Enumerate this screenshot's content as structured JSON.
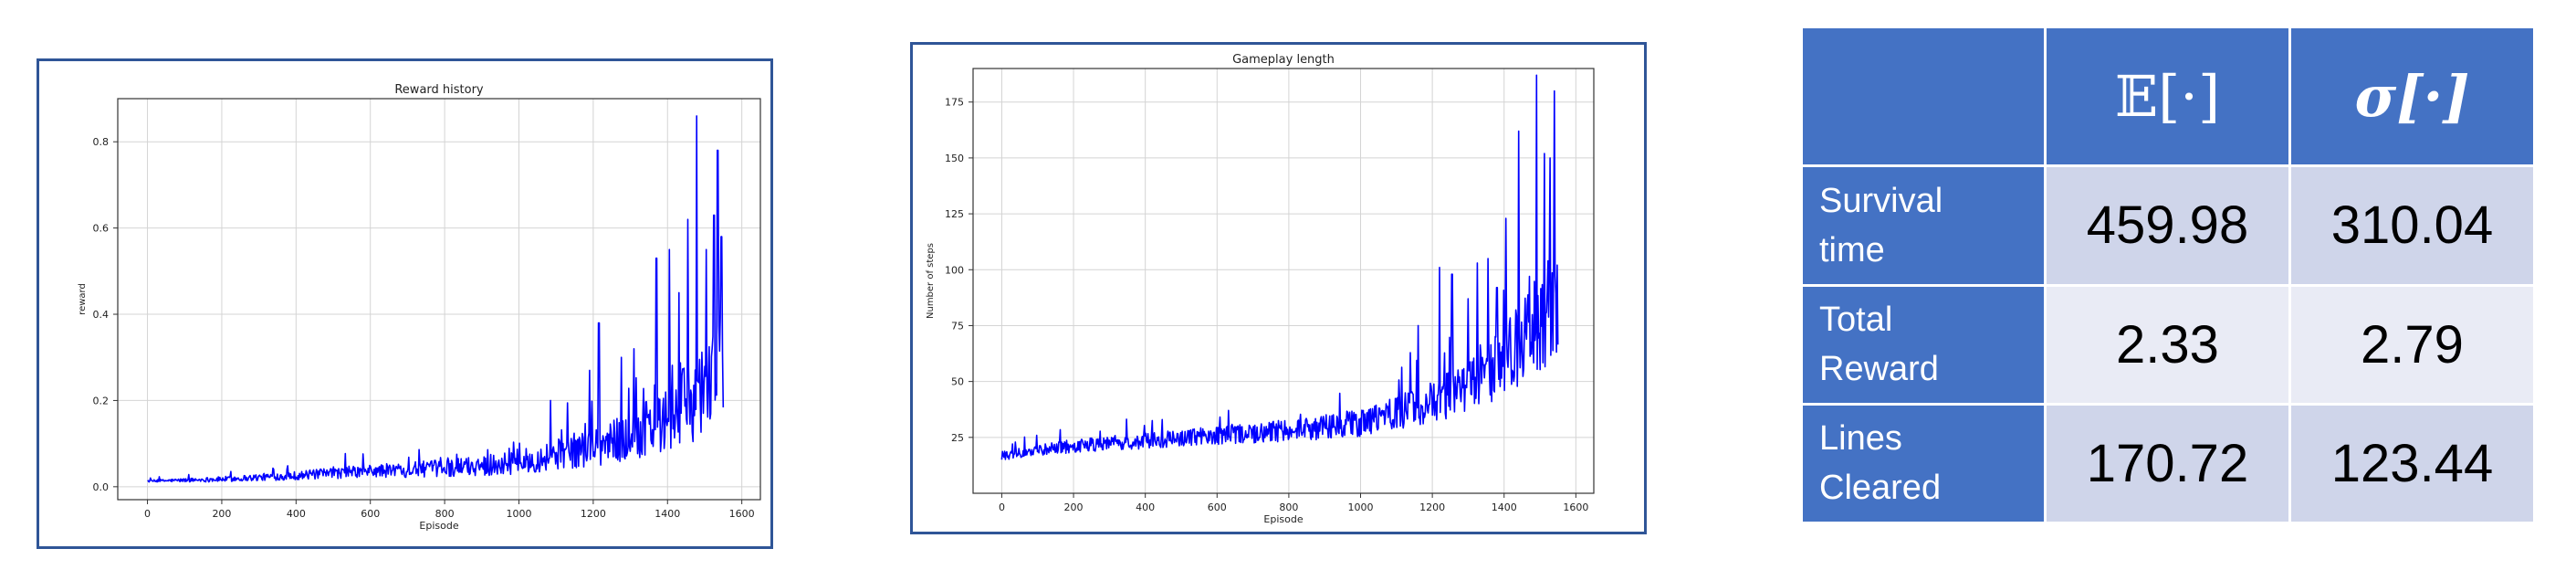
{
  "chart_data": [
    {
      "type": "line",
      "title": "Reward history",
      "xlabel": "Episode",
      "ylabel": "reward",
      "xlim": [
        -80,
        1650
      ],
      "ylim": [
        -0.03,
        0.9
      ],
      "xticks": [
        0,
        200,
        400,
        600,
        800,
        1000,
        1200,
        1400,
        1600
      ],
      "yticks": [
        0.0,
        0.2,
        0.4,
        0.6,
        0.8
      ],
      "ytick_labels": [
        "0.0",
        "0.2",
        "0.4",
        "0.6",
        "0.8"
      ],
      "grid": true,
      "color": "#0000ff",
      "series": [
        {
          "x_start": 0,
          "x_end": 1550,
          "baseline": [
            [
              0,
              0.012
            ],
            [
              200,
              0.015
            ],
            [
              400,
              0.022
            ],
            [
              600,
              0.03
            ],
            [
              800,
              0.035
            ],
            [
              1000,
              0.045
            ],
            [
              1100,
              0.06
            ],
            [
              1200,
              0.075
            ],
            [
              1300,
              0.09
            ],
            [
              1400,
              0.12
            ],
            [
              1450,
              0.15
            ],
            [
              1500,
              0.19
            ],
            [
              1550,
              0.24
            ]
          ],
          "amplitude": [
            [
              0,
              0.005
            ],
            [
              200,
              0.012
            ],
            [
              400,
              0.02
            ],
            [
              600,
              0.03
            ],
            [
              800,
              0.04
            ],
            [
              1000,
              0.055
            ],
            [
              1200,
              0.09
            ],
            [
              1300,
              0.12
            ],
            [
              1400,
              0.16
            ],
            [
              1500,
              0.22
            ],
            [
              1550,
              0.26
            ]
          ],
          "peaks": [
            [
              1085,
              0.2
            ],
            [
              1190,
              0.27
            ],
            [
              1215,
              0.38
            ],
            [
              1275,
              0.3
            ],
            [
              1310,
              0.32
            ],
            [
              1370,
              0.53
            ],
            [
              1405,
              0.55
            ],
            [
              1430,
              0.45
            ],
            [
              1455,
              0.62
            ],
            [
              1478,
              0.86
            ],
            [
              1505,
              0.55
            ],
            [
              1525,
              0.63
            ],
            [
              1535,
              0.78
            ],
            [
              1545,
              0.58
            ]
          ]
        }
      ]
    },
    {
      "type": "line",
      "title": "Gameplay length",
      "xlabel": "Episode",
      "ylabel": "Number of steps",
      "xlim": [
        -80,
        1650
      ],
      "ylim": [
        0,
        190
      ],
      "xticks": [
        0,
        200,
        400,
        600,
        800,
        1000,
        1200,
        1400,
        1600
      ],
      "yticks": [
        25,
        50,
        75,
        100,
        125,
        150,
        175
      ],
      "ytick_labels": [
        "25",
        "50",
        "75",
        "100",
        "125",
        "150",
        "175"
      ],
      "grid": true,
      "color": "#0000ff",
      "series": [
        {
          "x_start": 0,
          "x_end": 1550,
          "baseline": [
            [
              0,
              16
            ],
            [
              200,
              20
            ],
            [
              400,
              22
            ],
            [
              600,
              24
            ],
            [
              800,
              26
            ],
            [
              1000,
              29
            ],
            [
              1100,
              33
            ],
            [
              1200,
              37
            ],
            [
              1300,
              43
            ],
            [
              1400,
              52
            ],
            [
              1450,
              60
            ],
            [
              1500,
              68
            ],
            [
              1550,
              75
            ]
          ],
          "amplitude": [
            [
              0,
              4
            ],
            [
              200,
              6
            ],
            [
              400,
              7
            ],
            [
              600,
              8
            ],
            [
              800,
              10
            ],
            [
              1000,
              12
            ],
            [
              1200,
              18
            ],
            [
              1300,
              24
            ],
            [
              1400,
              32
            ],
            [
              1500,
              45
            ],
            [
              1550,
              52
            ]
          ],
          "peaks": [
            [
              1160,
              75
            ],
            [
              1220,
              101
            ],
            [
              1255,
              98
            ],
            [
              1300,
              87
            ],
            [
              1325,
              103
            ],
            [
              1355,
              105
            ],
            [
              1380,
              92
            ],
            [
              1405,
              123
            ],
            [
              1440,
              162
            ],
            [
              1470,
              97
            ],
            [
              1490,
              187
            ],
            [
              1512,
              152
            ],
            [
              1528,
              150
            ],
            [
              1540,
              180
            ]
          ]
        }
      ]
    }
  ],
  "table": {
    "col_headers": [
      "",
      "𝔼[·]",
      "σ[·]"
    ],
    "rows": [
      {
        "label_line1": "Survival",
        "label_line2": "time",
        "mean": "459.98",
        "std": "310.04"
      },
      {
        "label_line1": "Total",
        "label_line2": "Reward",
        "mean": "2.33",
        "std": "2.79"
      },
      {
        "label_line1": "Lines",
        "label_line2": "Cleared",
        "mean": "170.72",
        "std": "123.44"
      }
    ]
  }
}
